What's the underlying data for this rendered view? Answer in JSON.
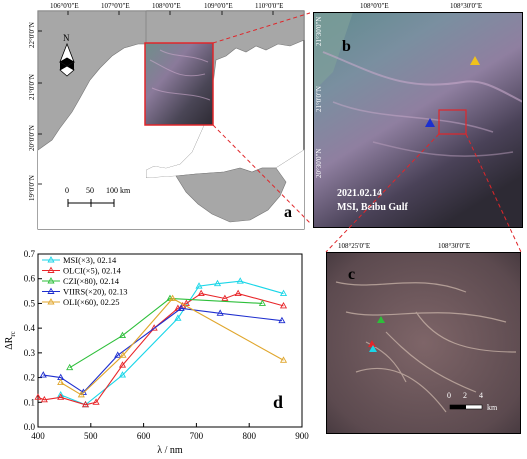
{
  "panel_a": {
    "letter": "a",
    "lon_ticks": [
      "106°0'0\"E",
      "107°0'0\"E",
      "108°0'0\"E",
      "109°0'0\"E",
      "110°0'0\"E"
    ],
    "lat_ticks": [
      "22°0'0\"N",
      "21°0'0\"N",
      "20°0'0\"N",
      "19°0'0\"N"
    ],
    "north": "N",
    "scale_labels": [
      "0",
      "50",
      "100 km"
    ],
    "colors": {
      "land": "#a7a7a7",
      "sea": "#ffffff",
      "box": "#e0262a"
    }
  },
  "panel_b": {
    "letter": "b",
    "lon_ticks": [
      "108°0'0\"E",
      "108°30'0\"E"
    ],
    "lat_ticks": [
      "21°30'0\"N",
      "21°0'0\"N",
      "20°30'0\"N"
    ],
    "date": "2021.02.14",
    "caption": "MSI, Beibu Gulf"
  },
  "panel_c": {
    "letter": "c",
    "lon_ticks": [
      "108°25'0\"E",
      "108°30'0\"E"
    ],
    "scale_labels": [
      "0",
      "2",
      "4",
      "km"
    ]
  },
  "panel_d": {
    "letter": "d",
    "chart_data": {
      "type": "line",
      "xlabel": "λ / nm",
      "ylabel": "ΔR",
      "ylabel_sub": "rc",
      "xlim": [
        400,
        900
      ],
      "ylim": [
        0,
        0.7
      ],
      "xticks": [
        400,
        500,
        600,
        700,
        800,
        900
      ],
      "yticks": [
        0.0,
        0.1,
        0.2,
        0.3,
        0.4,
        0.5,
        0.6,
        0.7
      ],
      "series": [
        {
          "name": "MSI(×3), 02.14",
          "color": "#19d6e8",
          "marker": "triangle",
          "x": [
            443,
            490,
            560,
            665,
            705,
            740,
            783,
            865
          ],
          "y": [
            0.13,
            0.09,
            0.21,
            0.44,
            0.57,
            0.58,
            0.59,
            0.54
          ]
        },
        {
          "name": "OLCI(×5), 02.14",
          "color": "#e8262a",
          "marker": "triangle",
          "x": [
            400,
            412,
            443,
            490,
            510,
            560,
            620,
            665,
            674,
            681,
            709,
            754,
            779,
            865
          ],
          "y": [
            0.12,
            0.11,
            0.12,
            0.09,
            0.1,
            0.25,
            0.4,
            0.48,
            0.49,
            0.5,
            0.54,
            0.52,
            0.54,
            0.49
          ]
        },
        {
          "name": "CZI(×80), 02.14",
          "color": "#2dbf3a",
          "marker": "triangle",
          "x": [
            460,
            560,
            650,
            825
          ],
          "y": [
            0.24,
            0.37,
            0.52,
            0.5
          ]
        },
        {
          "name": "VIIRS(×20), 02.13",
          "color": "#1f2fcf",
          "marker": "triangle",
          "x": [
            410,
            443,
            486,
            551,
            671,
            745,
            862
          ],
          "y": [
            0.21,
            0.2,
            0.14,
            0.29,
            0.48,
            0.46,
            0.43
          ]
        },
        {
          "name": "OLI(×60), 02.25",
          "color": "#e0a62c",
          "marker": "triangle",
          "x": [
            443,
            482,
            561,
            655,
            865
          ],
          "y": [
            0.18,
            0.13,
            0.29,
            0.52,
            0.27
          ]
        }
      ]
    }
  }
}
